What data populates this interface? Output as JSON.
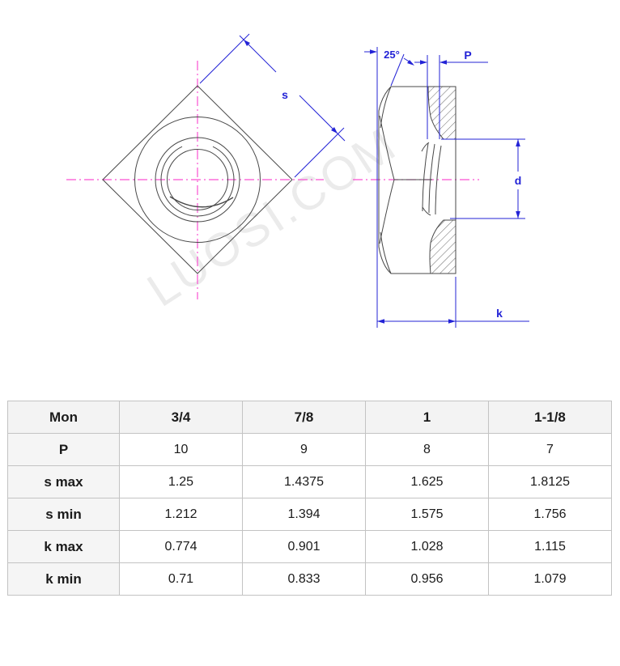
{
  "drawing": {
    "watermark": "LUOSI.COM",
    "front_view": {
      "label_s": "s"
    },
    "side_view": {
      "label_angle": "25°",
      "label_p": "P",
      "label_d": "d",
      "label_k": "k"
    }
  },
  "colors": {
    "dimension_blue": "#2323d6",
    "centerline_magenta": "#fa50d2",
    "line_dark": "#484848",
    "watermark_gray": "#ebebeb",
    "table_border": "#c3c3c3",
    "table_header_bg": "#f3f3f3",
    "table_label_bg": "#f5f5f5",
    "text_color": "#1b1b1b"
  },
  "table": {
    "header": [
      "Mon",
      "3/4",
      "7/8",
      "1",
      "1-1/8"
    ],
    "rows": [
      {
        "label": "P",
        "values": [
          "10",
          "9",
          "8",
          "7"
        ]
      },
      {
        "label": "s max",
        "values": [
          "1.25",
          "1.4375",
          "1.625",
          "1.8125"
        ]
      },
      {
        "label": "s min",
        "values": [
          "1.212",
          "1.394",
          "1.575",
          "1.756"
        ]
      },
      {
        "label": "k max",
        "values": [
          "0.774",
          "0.901",
          "1.028",
          "1.115"
        ]
      },
      {
        "label": "k min",
        "values": [
          "0.71",
          "0.833",
          "0.956",
          "1.079"
        ]
      }
    ]
  }
}
